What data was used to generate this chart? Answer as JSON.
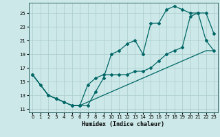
{
  "xlabel": "Humidex (Indice chaleur)",
  "background_color": "#cce8e8",
  "grid_color": "#aacccc",
  "line_color": "#006666",
  "xlim": [
    -0.5,
    23.5
  ],
  "ylim": [
    10.5,
    26.5
  ],
  "xticks": [
    0,
    1,
    2,
    3,
    4,
    5,
    6,
    7,
    8,
    9,
    10,
    11,
    12,
    13,
    14,
    15,
    16,
    17,
    18,
    19,
    20,
    21,
    22,
    23
  ],
  "yticks": [
    11,
    13,
    15,
    17,
    19,
    21,
    23,
    25
  ],
  "series1_x": [
    0,
    1,
    2,
    3,
    4,
    5,
    6,
    7,
    8,
    9,
    10,
    11,
    12,
    13,
    14,
    15,
    16,
    17,
    18,
    19,
    20,
    21,
    22,
    23
  ],
  "series1_y": [
    16,
    14.5,
    13,
    12.5,
    12,
    11.5,
    11.5,
    14.5,
    15.5,
    16,
    16,
    16,
    16,
    16.5,
    16.5,
    17,
    18,
    19,
    19.5,
    20,
    24.5,
    25,
    25,
    22
  ],
  "series2_x": [
    0,
    2,
    3,
    4,
    5,
    6,
    7,
    8,
    9,
    10,
    11,
    12,
    13,
    14,
    15,
    16,
    17,
    18,
    19,
    20,
    21,
    22,
    23
  ],
  "series2_y": [
    16,
    13,
    12.5,
    12,
    11.5,
    11.5,
    11.5,
    13.5,
    15.5,
    19,
    19.5,
    20.5,
    21,
    19,
    23.5,
    23.5,
    25.5,
    26,
    25.5,
    25,
    25,
    21,
    19.5
  ],
  "series3_x": [
    0,
    1,
    2,
    3,
    4,
    5,
    6,
    7,
    8,
    9,
    10,
    11,
    12,
    13,
    14,
    15,
    16,
    17,
    18,
    19,
    20,
    21,
    22,
    23
  ],
  "series3_y": [
    16,
    14.5,
    13,
    12.5,
    12,
    11.5,
    11.5,
    12,
    12.5,
    13,
    13.5,
    14,
    14.5,
    15,
    15.5,
    16,
    16.5,
    17,
    17.5,
    18,
    18.5,
    19,
    19.5,
    19.5
  ]
}
